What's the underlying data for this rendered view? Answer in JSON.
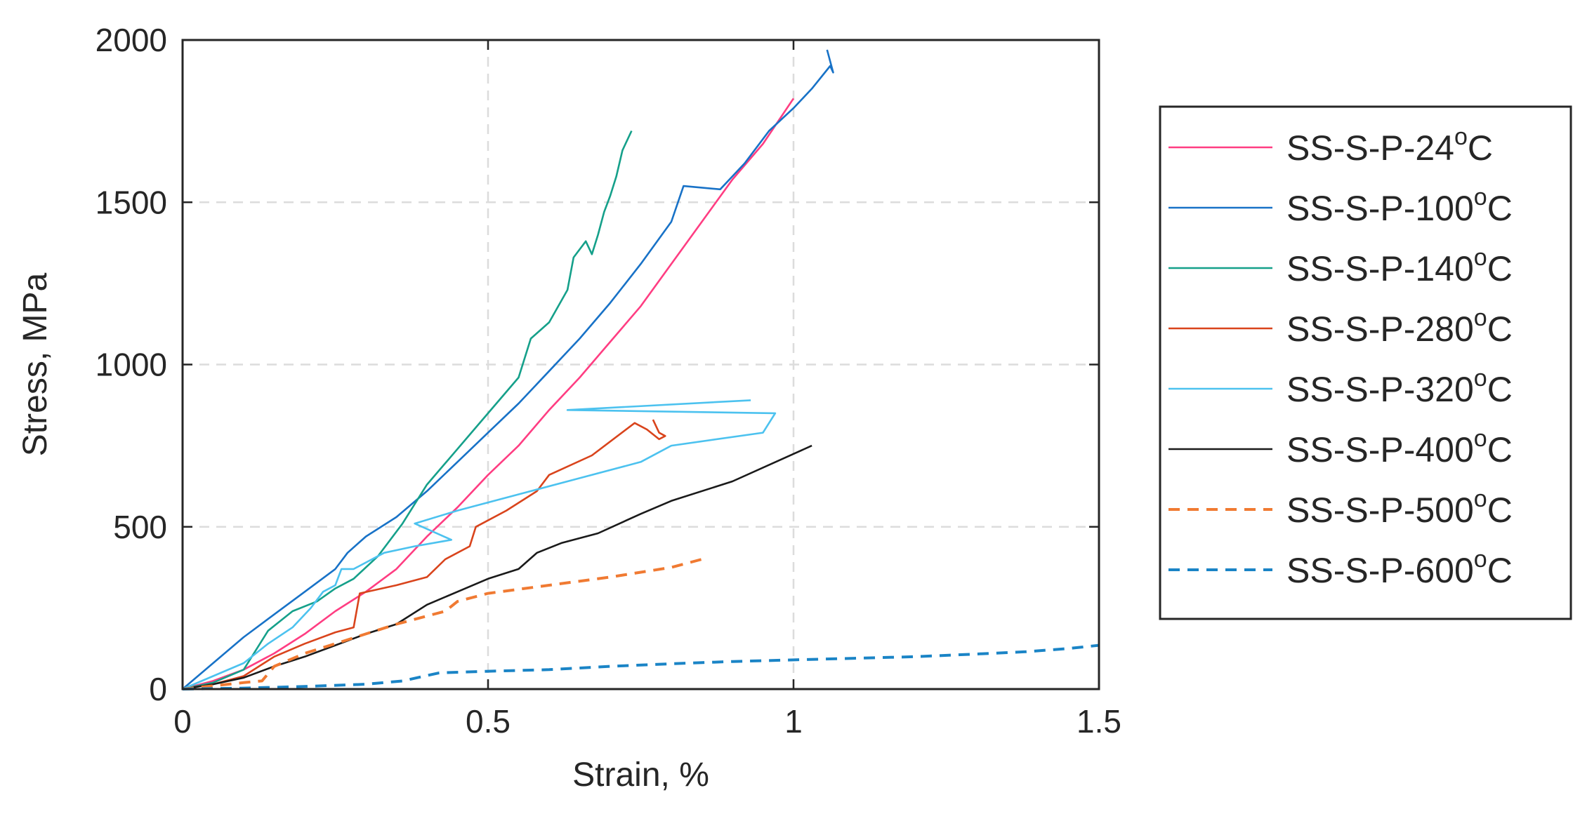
{
  "chart_data": {
    "type": "line",
    "title": "",
    "xlabel": "Strain, %",
    "ylabel": "Stress, MPa",
    "xlim": [
      0,
      1.5
    ],
    "ylim": [
      0,
      2000
    ],
    "xticks": [
      0,
      0.5,
      1,
      1.5
    ],
    "xtick_labels": [
      "0",
      "0.5",
      "1",
      "1.5"
    ],
    "yticks": [
      0,
      500,
      1000,
      1500,
      2000
    ],
    "ytick_labels": [
      "0",
      "500",
      "1000",
      "1500",
      "2000"
    ],
    "grid": true,
    "legend_position": "outside-right",
    "series": [
      {
        "name": "SS-S-P-24",
        "sup": "o",
        "unit": "C",
        "color": "#ff3d82",
        "dashed": false,
        "x": [
          0,
          0.05,
          0.1,
          0.15,
          0.2,
          0.25,
          0.3,
          0.35,
          0.4,
          0.45,
          0.5,
          0.55,
          0.6,
          0.65,
          0.7,
          0.75,
          0.8,
          0.85,
          0.9,
          0.95,
          1.0
        ],
        "y": [
          0,
          25,
          60,
          110,
          170,
          240,
          300,
          370,
          470,
          560,
          660,
          750,
          860,
          960,
          1070,
          1180,
          1310,
          1440,
          1570,
          1680,
          1820
        ]
      },
      {
        "name": "SS-S-P-100",
        "sup": "o",
        "unit": "C",
        "color": "#1872c7",
        "dashed": false,
        "x": [
          0,
          0.05,
          0.1,
          0.15,
          0.2,
          0.25,
          0.27,
          0.3,
          0.35,
          0.4,
          0.45,
          0.5,
          0.55,
          0.6,
          0.65,
          0.7,
          0.75,
          0.8,
          0.82,
          0.88,
          0.92,
          0.96,
          1.0,
          1.03,
          1.06,
          1.065,
          1.055
        ],
        "y": [
          0,
          80,
          160,
          230,
          300,
          370,
          420,
          470,
          530,
          610,
          700,
          790,
          880,
          980,
          1080,
          1190,
          1310,
          1440,
          1550,
          1540,
          1620,
          1720,
          1790,
          1850,
          1920,
          1900,
          1970
        ]
      },
      {
        "name": "SS-S-P-140",
        "sup": "o",
        "unit": "C",
        "color": "#15a08a",
        "dashed": false,
        "x": [
          0,
          0.05,
          0.1,
          0.14,
          0.18,
          0.22,
          0.25,
          0.28,
          0.32,
          0.36,
          0.4,
          0.45,
          0.5,
          0.55,
          0.57,
          0.6,
          0.63,
          0.64,
          0.66,
          0.67,
          0.68,
          0.69,
          0.7,
          0.71,
          0.72,
          0.735
        ],
        "y": [
          0,
          20,
          60,
          180,
          240,
          270,
          310,
          340,
          410,
          510,
          630,
          740,
          850,
          960,
          1080,
          1130,
          1230,
          1330,
          1380,
          1340,
          1400,
          1470,
          1520,
          1580,
          1660,
          1720
        ]
      },
      {
        "name": "SS-S-P-280",
        "sup": "o",
        "unit": "C",
        "color": "#d9441c",
        "dashed": false,
        "x": [
          0,
          0.05,
          0.1,
          0.15,
          0.2,
          0.25,
          0.28,
          0.29,
          0.35,
          0.4,
          0.43,
          0.47,
          0.48,
          0.53,
          0.58,
          0.6,
          0.67,
          0.74,
          0.76,
          0.78,
          0.79,
          0.78,
          0.77
        ],
        "y": [
          0,
          15,
          40,
          100,
          140,
          175,
          190,
          295,
          320,
          345,
          400,
          440,
          500,
          550,
          610,
          660,
          720,
          820,
          800,
          770,
          780,
          790,
          830
        ]
      },
      {
        "name": "SS-S-P-320",
        "sup": "o",
        "unit": "C",
        "color": "#4cc2ef",
        "dashed": false,
        "x": [
          0,
          0.05,
          0.1,
          0.14,
          0.18,
          0.21,
          0.23,
          0.25,
          0.26,
          0.28,
          0.33,
          0.38,
          0.44,
          0.38,
          0.45,
          0.55,
          0.65,
          0.75,
          0.8,
          0.95,
          0.97,
          0.63,
          0.93
        ],
        "y": [
          0,
          40,
          80,
          140,
          190,
          250,
          300,
          320,
          370,
          370,
          420,
          440,
          460,
          510,
          550,
          600,
          650,
          700,
          750,
          790,
          850,
          860,
          890
        ]
      },
      {
        "name": "SS-S-P-400",
        "sup": "o",
        "unit": "C",
        "color": "#1a1a1a",
        "dashed": false,
        "x": [
          0,
          0.05,
          0.1,
          0.15,
          0.2,
          0.25,
          0.3,
          0.35,
          0.4,
          0.45,
          0.5,
          0.55,
          0.58,
          0.62,
          0.68,
          0.75,
          0.8,
          0.9,
          1.03
        ],
        "y": [
          0,
          15,
          35,
          70,
          100,
          135,
          170,
          200,
          260,
          300,
          340,
          370,
          420,
          450,
          480,
          540,
          580,
          640,
          750
        ]
      },
      {
        "name": "SS-S-P-500",
        "sup": "o",
        "unit": "C",
        "color": "#f07a32",
        "dashed": true,
        "x": [
          0,
          0.05,
          0.1,
          0.13,
          0.15,
          0.2,
          0.25,
          0.3,
          0.35,
          0.4,
          0.43,
          0.45,
          0.5,
          0.6,
          0.7,
          0.8,
          0.85
        ],
        "y": [
          0,
          10,
          20,
          25,
          70,
          110,
          140,
          170,
          200,
          225,
          240,
          270,
          295,
          320,
          345,
          375,
          400
        ]
      },
      {
        "name": "SS-S-P-600",
        "sup": "o",
        "unit": "C",
        "color": "#1a84c6",
        "dashed": true,
        "x": [
          0,
          0.1,
          0.2,
          0.3,
          0.36,
          0.42,
          0.5,
          0.6,
          0.7,
          0.8,
          0.9,
          1.0,
          1.1,
          1.2,
          1.3,
          1.38,
          1.45,
          1.5
        ],
        "y": [
          0,
          3,
          8,
          15,
          25,
          50,
          55,
          60,
          70,
          78,
          85,
          90,
          95,
          100,
          108,
          115,
          125,
          135
        ]
      }
    ]
  }
}
